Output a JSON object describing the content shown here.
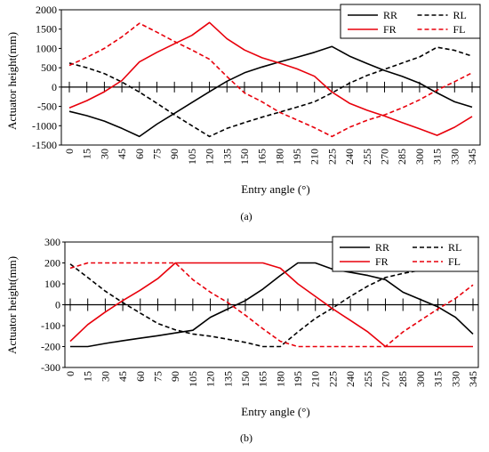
{
  "chart_data": [
    {
      "type": "line",
      "panel_label": "(a)",
      "xlabel": "Entry angle (°)",
      "ylabel": "Actuator height(mm)",
      "x_ticks": [
        0,
        15,
        30,
        45,
        60,
        75,
        90,
        105,
        120,
        135,
        150,
        165,
        180,
        195,
        210,
        225,
        240,
        255,
        270,
        285,
        300,
        315,
        330,
        345
      ],
      "ylim": [
        -1500,
        2000
      ],
      "y_ticks": [
        -1500,
        -1000,
        -500,
        0,
        500,
        1000,
        1500,
        2000
      ],
      "grid": false,
      "legend_position": "top-right",
      "series": [
        {
          "name": "RR",
          "color": "#000000",
          "dash": "solid",
          "x": [
            0,
            15,
            30,
            45,
            60,
            75,
            90,
            105,
            120,
            135,
            150,
            165,
            180,
            195,
            210,
            225,
            240,
            255,
            270,
            285,
            300,
            315,
            330,
            345
          ],
          "y": [
            -630,
            -740,
            -880,
            -1070,
            -1280,
            -960,
            -680,
            -400,
            -120,
            150,
            370,
            520,
            650,
            770,
            900,
            1050,
            800,
            610,
            430,
            280,
            100,
            -150,
            -380,
            -520
          ]
        },
        {
          "name": "RL",
          "color": "#000000",
          "dash": "dashed",
          "x": [
            0,
            15,
            30,
            45,
            60,
            75,
            90,
            105,
            120,
            135,
            150,
            165,
            180,
            195,
            210,
            225,
            240,
            255,
            270,
            285,
            300,
            315,
            330,
            345
          ],
          "y": [
            620,
            500,
            350,
            130,
            -130,
            -420,
            -720,
            -1000,
            -1280,
            -1070,
            -920,
            -780,
            -650,
            -520,
            -380,
            -150,
            100,
            300,
            460,
            620,
            780,
            1030,
            950,
            800
          ]
        },
        {
          "name": "FR",
          "color": "#e8000b",
          "dash": "solid",
          "x": [
            0,
            15,
            30,
            45,
            60,
            75,
            90,
            105,
            120,
            135,
            150,
            165,
            180,
            195,
            210,
            225,
            240,
            255,
            270,
            285,
            300,
            315,
            330,
            345
          ],
          "y": [
            -540,
            -350,
            -120,
            170,
            650,
            900,
            1120,
            1340,
            1670,
            1250,
            960,
            760,
            620,
            470,
            280,
            -130,
            -420,
            -600,
            -750,
            -920,
            -1080,
            -1250,
            -1040,
            -760
          ]
        },
        {
          "name": "FL",
          "color": "#e8000b",
          "dash": "dashed",
          "x": [
            0,
            15,
            30,
            45,
            60,
            75,
            90,
            105,
            120,
            135,
            150,
            165,
            180,
            195,
            210,
            225,
            240,
            255,
            270,
            285,
            300,
            315,
            330,
            345
          ],
          "y": [
            560,
            770,
            1000,
            1300,
            1650,
            1420,
            1180,
            960,
            720,
            270,
            -150,
            -380,
            -650,
            -850,
            -1050,
            -1280,
            -1040,
            -860,
            -720,
            -540,
            -330,
            -80,
            140,
            370
          ]
        }
      ]
    },
    {
      "type": "line",
      "panel_label": "(b)",
      "xlabel": "Entry angle (°)",
      "ylabel": "Actuator height(mm)",
      "x_ticks": [
        0,
        15,
        30,
        45,
        60,
        75,
        90,
        105,
        120,
        135,
        150,
        165,
        180,
        195,
        210,
        225,
        240,
        255,
        270,
        285,
        300,
        315,
        330,
        345
      ],
      "ylim": [
        -300,
        300
      ],
      "y_ticks": [
        -300,
        -200,
        -100,
        0,
        100,
        200,
        300
      ],
      "grid": false,
      "legend_position": "top-right",
      "series": [
        {
          "name": "RR",
          "color": "#000000",
          "dash": "solid",
          "x": [
            0,
            15,
            30,
            45,
            60,
            75,
            90,
            105,
            120,
            135,
            150,
            165,
            180,
            195,
            210,
            225,
            240,
            255,
            270,
            285,
            300,
            315,
            330,
            345
          ],
          "y": [
            -200,
            -200,
            -185,
            -172,
            -160,
            -148,
            -135,
            -122,
            -60,
            -20,
            20,
            75,
            140,
            200,
            200,
            170,
            155,
            140,
            120,
            60,
            25,
            -10,
            -60,
            -140
          ]
        },
        {
          "name": "RL",
          "color": "#000000",
          "dash": "dashed",
          "x": [
            0,
            15,
            30,
            45,
            60,
            75,
            90,
            105,
            120,
            135,
            150,
            165,
            180,
            195,
            210,
            225,
            240,
            255,
            270,
            285,
            300,
            315,
            330,
            345
          ],
          "y": [
            195,
            130,
            65,
            10,
            -40,
            -90,
            -120,
            -140,
            -150,
            -165,
            -180,
            -200,
            -200,
            -130,
            -65,
            -15,
            40,
            90,
            130,
            150,
            165,
            180,
            190,
            200
          ]
        },
        {
          "name": "FR",
          "color": "#e8000b",
          "dash": "solid",
          "x": [
            0,
            15,
            30,
            45,
            60,
            75,
            90,
            105,
            120,
            135,
            150,
            165,
            180,
            195,
            210,
            225,
            240,
            255,
            270,
            285,
            300,
            315,
            330,
            345
          ],
          "y": [
            -175,
            -95,
            -35,
            20,
            70,
            125,
            200,
            200,
            200,
            200,
            200,
            200,
            175,
            100,
            40,
            -20,
            -75,
            -130,
            -200,
            -200,
            -200,
            -200,
            -200,
            -200
          ]
        },
        {
          "name": "FL",
          "color": "#e8000b",
          "dash": "dashed",
          "x": [
            0,
            15,
            30,
            45,
            60,
            75,
            90,
            105,
            120,
            135,
            150,
            165,
            180,
            195,
            210,
            225,
            240,
            255,
            270,
            285,
            300,
            315,
            330,
            345
          ],
          "y": [
            175,
            200,
            200,
            200,
            200,
            200,
            200,
            120,
            60,
            10,
            -50,
            -115,
            -175,
            -200,
            -200,
            -200,
            -200,
            -200,
            -200,
            -130,
            -75,
            -20,
            30,
            95
          ]
        }
      ]
    }
  ]
}
